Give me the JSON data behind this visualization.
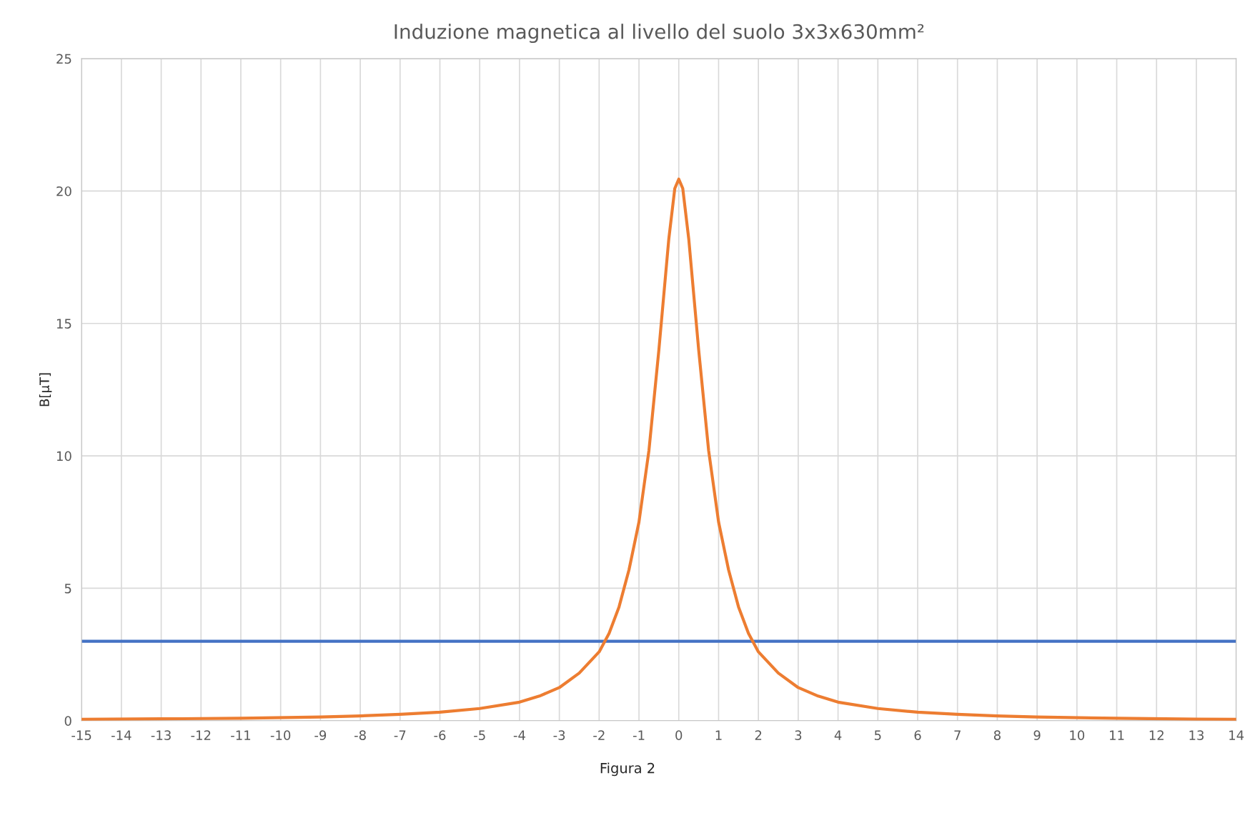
{
  "chart_data": {
    "type": "line",
    "title": "Induzione magnetica al livello del suolo 3x3x630mm²",
    "ylabel": "B[µT]",
    "annotations": [
      "Figura 2"
    ],
    "series": [
      {
        "color": "#ed7d31",
        "x": [
          -15,
          -13,
          -11,
          -9,
          -8,
          -7,
          -6,
          -5,
          -4,
          -3.5,
          -3,
          -2.5,
          -2,
          -1.75,
          -1.5,
          -1.25,
          -1,
          -0.75,
          -0.5,
          -0.25,
          -0.1,
          0,
          0.1,
          0.25,
          0.5,
          0.75,
          1,
          1.25,
          1.5,
          1.75,
          2,
          2.5,
          3,
          3.5,
          4,
          5,
          6,
          7,
          8,
          9,
          11,
          13,
          14
        ],
        "values": [
          0.05,
          0.07,
          0.09,
          0.14,
          0.18,
          0.24,
          0.32,
          0.46,
          0.7,
          0.93,
          1.25,
          1.8,
          2.6,
          3.3,
          4.3,
          5.7,
          7.5,
          10.2,
          14.0,
          18.2,
          20.1,
          20.45,
          20.1,
          18.2,
          14.0,
          10.2,
          7.5,
          5.7,
          4.3,
          3.3,
          2.6,
          1.8,
          1.25,
          0.93,
          0.7,
          0.46,
          0.32,
          0.24,
          0.18,
          0.14,
          0.09,
          0.06,
          0.05
        ]
      }
    ],
    "ref_lines": [
      {
        "axis": "y",
        "value": 3,
        "color": "#4472c4"
      }
    ],
    "xlim": [
      -15,
      14
    ],
    "xticks": [
      -15,
      -14,
      -13,
      -12,
      -11,
      -10,
      -9,
      -8,
      -7,
      -6,
      -5,
      -4,
      -3,
      -2,
      -1,
      0,
      1,
      2,
      3,
      4,
      5,
      6,
      7,
      8,
      9,
      10,
      11,
      12,
      13,
      14
    ],
    "ylim": [
      0,
      25
    ],
    "yticks": [
      0,
      5,
      10,
      15,
      20,
      25
    ],
    "grid": true,
    "marker": "none",
    "line_style": "solid"
  }
}
